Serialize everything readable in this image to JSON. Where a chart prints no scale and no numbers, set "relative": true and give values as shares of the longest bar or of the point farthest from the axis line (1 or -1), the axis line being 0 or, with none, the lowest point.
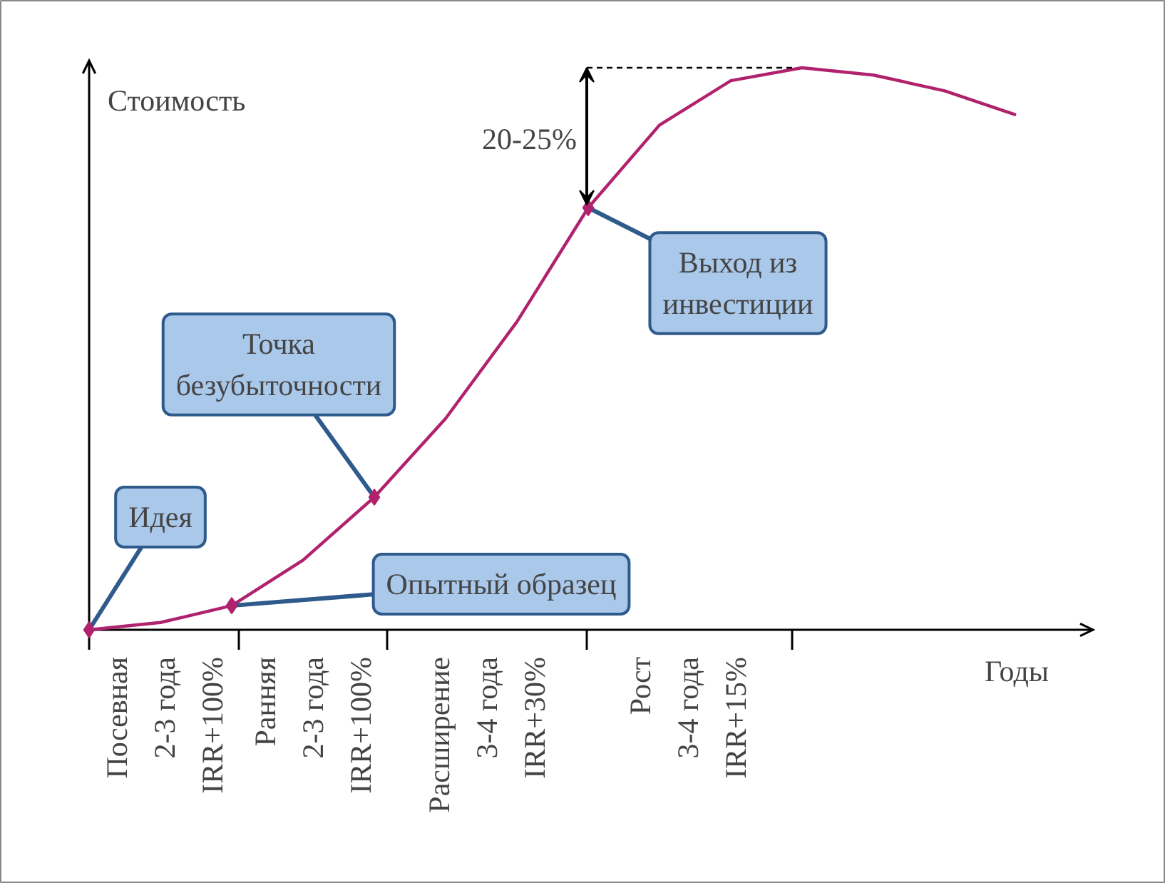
{
  "chart_data": {
    "type": "line",
    "relative": true,
    "xlabel": "Годы",
    "ylabel": "Стоимость",
    "categories": [
      null,
      null,
      null,
      null,
      null,
      null,
      null,
      null,
      null,
      null,
      null,
      null,
      null,
      null
    ],
    "series": [
      {
        "color": "#b0226e",
        "values": [
          0,
          0.013,
          0.043,
          0.124,
          0.236,
          0.376,
          0.548,
          0.751,
          0.898,
          0.977,
          1.0,
          0.987,
          0.959,
          0.916
        ]
      }
    ],
    "annotations": [
      "Идея",
      "Опытный образец",
      "Точка\nбезубыточности",
      "Выход из\nинвестиции",
      "20-25%",
      "Посевная\n2-3 года\nIRR+100%",
      "Ранняя\n2-3 года\nIRR+100%",
      "Расширение\n3-4 года\nIRR+30%",
      "Рост\n3-4 года\nIRR+15%"
    ]
  }
}
